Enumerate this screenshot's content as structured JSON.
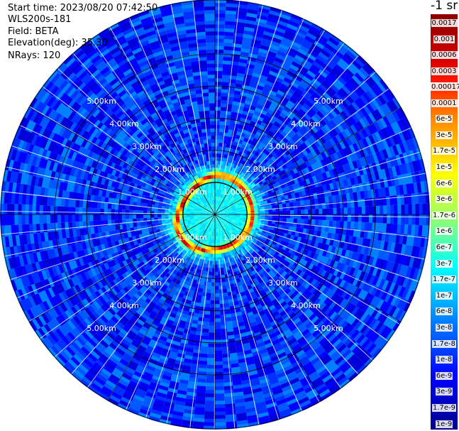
{
  "header": {
    "start_time": "Start time: 2023/08/20 07:42:50",
    "instrument": "WLS200s-181",
    "field": "Field: BETA",
    "elevation": "Elevation(deg): 35.30",
    "nrays": "NRays: 120"
  },
  "colorbar": {
    "title": "-1 sr",
    "labels": [
      "0.0017",
      "0.001",
      "0.0006",
      "0.0003",
      "0.00017",
      "0.0001",
      "6e-5",
      "3e-5",
      "1.7e-5",
      "1e-5",
      "6e-6",
      "3e-6",
      "1.7e-6",
      "1e-6",
      "6e-7",
      "3e-7",
      "1.7e-7",
      "1e-7",
      "6e-8",
      "3e-8",
      "1.7e-8",
      "1e-8",
      "6e-9",
      "3e-9",
      "1.7e-9",
      "1e-9"
    ],
    "colors": [
      "#8b0000",
      "#b00000",
      "#d60000",
      "#ff1a00",
      "#ff5a00",
      "#ff8c00",
      "#ffb000",
      "#ffd800",
      "#ffff00",
      "#d0ff30",
      "#a8ff58",
      "#70ff90",
      "#40ffc0",
      "#00ffff",
      "#00d8ff",
      "#00b0ff",
      "#0080ff",
      "#0058ff",
      "#0030ff",
      "#0000ff",
      "#0000d8",
      "#0000b0",
      "#00008b"
    ]
  },
  "chart_data": {
    "type": "heatmap",
    "projection": "polar PPI scan",
    "field": "BETA",
    "units": "sr-1",
    "n_rays": 120,
    "elevation_deg": 35.3,
    "range_rings_km": [
      1.0,
      2.0,
      3.0,
      4.0,
      5.0
    ],
    "range_ring_labels": [
      "1.00km",
      "2.00km",
      "3.00km",
      "4.00km",
      "5.00km"
    ],
    "max_range_km": 6.7,
    "spoke_angles_deg": [
      0,
      30,
      60,
      90,
      120,
      150,
      180,
      210,
      240,
      270,
      300,
      330
    ],
    "color_scale": "log",
    "value_range": [
      1e-09,
      0.0017
    ],
    "pattern": {
      "inner_core_km": [
        0,
        1.0
      ],
      "inner_core_value": 3e-07,
      "enhanced_ring_km": [
        1.0,
        1.3
      ],
      "enhanced_ring_peak_value": 0.0006,
      "outer_background_value": 1e-08,
      "outer_background_range": [
        3e-09,
        6e-08
      ]
    }
  }
}
